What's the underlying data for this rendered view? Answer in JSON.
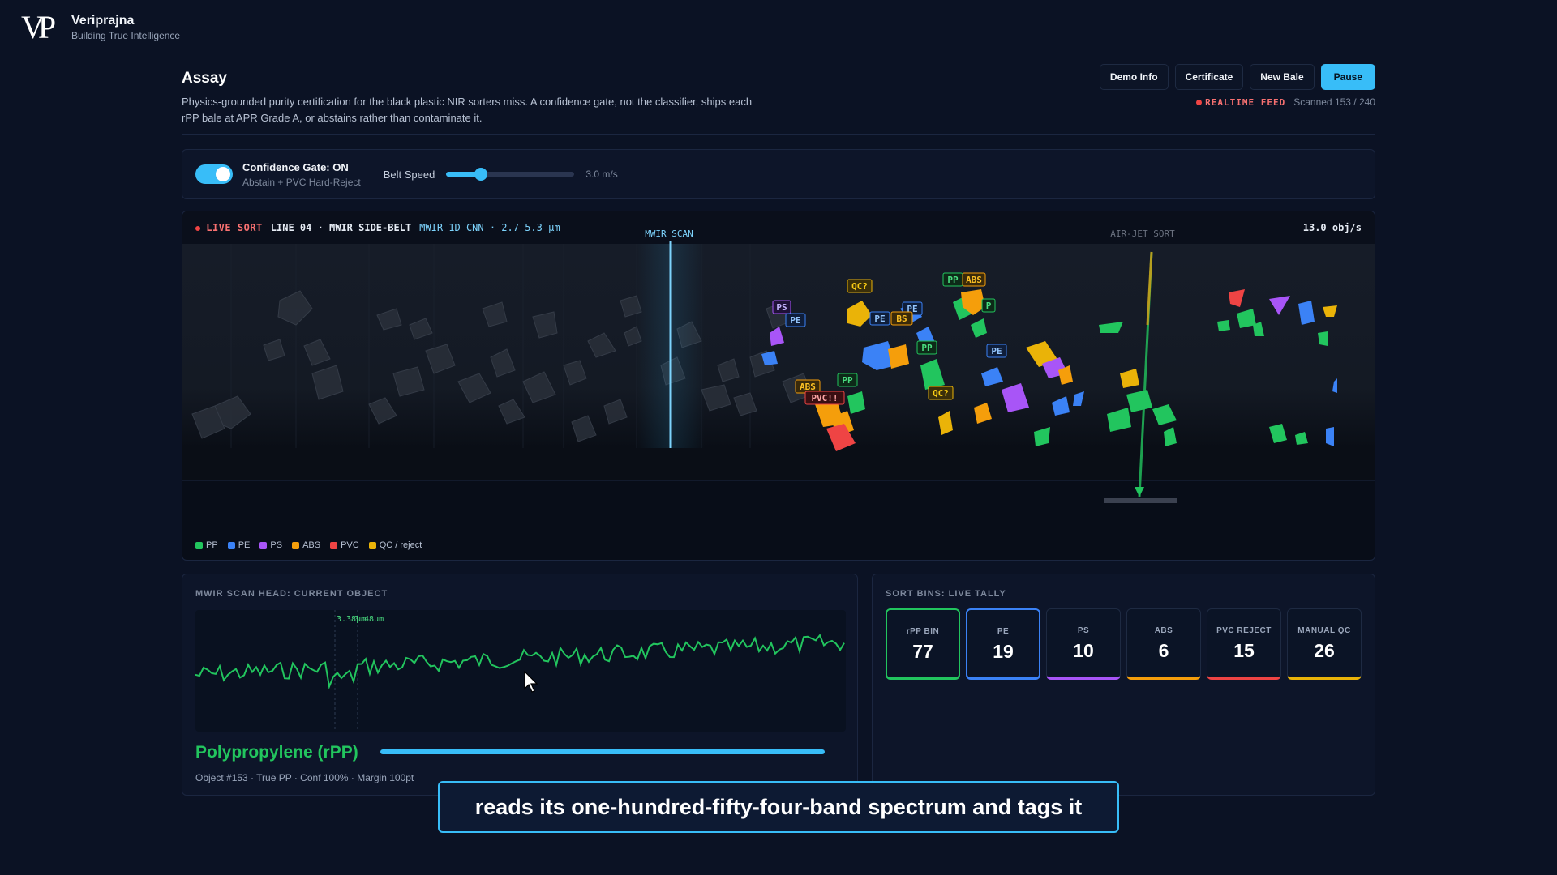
{
  "brand": {
    "logo": "VP",
    "name": "Veriprajna",
    "tagline": "Building True Intelligence"
  },
  "header": {
    "title": "Assay",
    "description": "Physics-grounded purity certification for the black plastic NIR sorters miss. A confidence gate, not the classifier, ships each rPP bale at APR Grade A, or abstains rather than contaminate it.",
    "buttons": {
      "demo_info": "Demo Info",
      "certificate": "Certificate",
      "new_bale": "New Bale",
      "pause": "Pause"
    },
    "feed_label": "REALTIME FEED",
    "scanned": "Scanned 153 / 240"
  },
  "controls": {
    "gate_label": "Confidence Gate: ON",
    "gate_sub": "Abstain + PVC Hard-Reject",
    "belt_speed_label": "Belt Speed",
    "belt_speed_value": "3.0 m/s",
    "belt_speed_fraction": 0.27
  },
  "belt": {
    "live_sort": "LIVE SORT",
    "line": "LINE 04 · MWIR SIDE-BELT",
    "model": "MWIR 1D-CNN · 2.7–5.3 µm",
    "rate": "13.0 obj/s",
    "mwir_scan_label": "MWIR SCAN",
    "air_jet_label": "AIR-JET SORT",
    "tags": [
      "QC?",
      "PP",
      "ABS",
      "PE",
      "PE",
      "BS",
      "PP",
      "PS",
      "PE",
      "PE",
      "PP",
      "ABS",
      "PVC!!",
      "QC?",
      "P"
    ],
    "legend": [
      {
        "label": "PP",
        "color": "#22c55e"
      },
      {
        "label": "PE",
        "color": "#3b82f6"
      },
      {
        "label": "PS",
        "color": "#a855f7"
      },
      {
        "label": "ABS",
        "color": "#f59e0b"
      },
      {
        "label": "PVC",
        "color": "#ef4444"
      },
      {
        "label": "QC / reject",
        "color": "#eab308"
      }
    ]
  },
  "scan_head": {
    "title": "MWIR SCAN HEAD: CURRENT OBJECT",
    "peak_label": "3.38µm",
    "peak_label_2": "3.48µm",
    "material": "Polypropylene (rPP)",
    "confidence": 1.0,
    "object_info": "Object #153 · True PP · Conf 100% · Margin 100pt"
  },
  "bins": {
    "title": "SORT BINS: LIVE TALLY",
    "items": [
      {
        "label": "rPP BIN",
        "count": "77",
        "color": "#22c55e",
        "highlight": true
      },
      {
        "label": "PE",
        "count": "19",
        "color": "#3b82f6",
        "highlight": true
      },
      {
        "label": "PS",
        "count": "10",
        "color": "#a855f7",
        "highlight": false
      },
      {
        "label": "ABS",
        "count": "6",
        "color": "#f59e0b",
        "highlight": false
      },
      {
        "label": "PVC REJECT",
        "count": "15",
        "color": "#ef4444",
        "highlight": false
      },
      {
        "label": "MANUAL QC",
        "count": "26",
        "color": "#eab308",
        "highlight": false
      }
    ]
  },
  "caption": "reads its one-hundred-fifty-four-band spectrum and tags it"
}
